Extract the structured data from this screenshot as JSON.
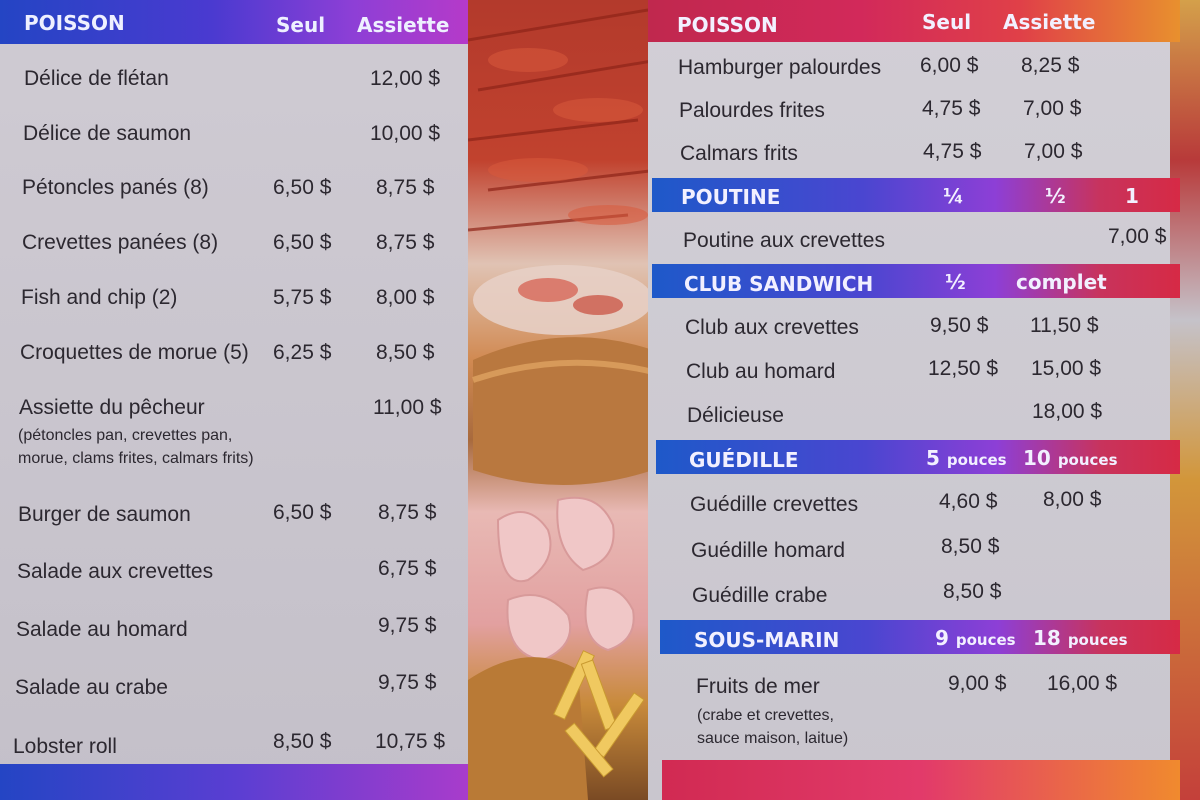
{
  "left": {
    "header": {
      "section": "POISSON",
      "col1": "Seul",
      "col2": "Assiette"
    },
    "items": [
      {
        "name": "Délice de flétan",
        "seul": "",
        "assiette": "12,00 $"
      },
      {
        "name": "Délice de saumon",
        "seul": "",
        "assiette": "10,00 $"
      },
      {
        "name": "Pétoncles panés (8)",
        "seul": "6,50 $",
        "assiette": "8,75 $"
      },
      {
        "name": "Crevettes panées (8)",
        "seul": "6,50 $",
        "assiette": "8,75 $"
      },
      {
        "name": "Fish and chip (2)",
        "seul": "5,75 $",
        "assiette": "8,00 $"
      },
      {
        "name": "Croquettes de morue (5)",
        "seul": "6,25 $",
        "assiette": "8,50 $"
      },
      {
        "name": "Assiette du pêcheur",
        "seul": "",
        "assiette": "11,00 $",
        "note1": "(pétoncles pan, crevettes pan,",
        "note2": "morue, clams frites, calmars frits)"
      },
      {
        "name": "Burger de saumon",
        "seul": "6,50 $",
        "assiette": "8,75 $"
      },
      {
        "name": "Salade aux crevettes",
        "seul": "",
        "assiette": "6,75 $"
      },
      {
        "name": "Salade au homard",
        "seul": "",
        "assiette": "9,75 $"
      },
      {
        "name": "Salade au crabe",
        "seul": "",
        "assiette": "9,75 $"
      },
      {
        "name": "Lobster roll",
        "seul": "8,50 $",
        "assiette": "10,75 $"
      }
    ]
  },
  "right": {
    "poisson": {
      "header": {
        "section": "POISSON",
        "col1": "Seul",
        "col2": "Assiette"
      },
      "items": [
        {
          "name": "Hamburger palourdes",
          "seul": "6,00 $",
          "assiette": "8,25 $"
        },
        {
          "name": "Palourdes frites",
          "seul": "4,75 $",
          "assiette": "7,00 $"
        },
        {
          "name": "Calmars frits",
          "seul": "4,75 $",
          "assiette": "7,00 $"
        }
      ]
    },
    "poutine": {
      "header": {
        "section": "POUTINE",
        "col1": "¼",
        "col2": "½",
        "col3": "1"
      },
      "items": [
        {
          "name": "Poutine aux crevettes",
          "price": "7,00 $"
        }
      ]
    },
    "club": {
      "header": {
        "section": "CLUB SANDWICH",
        "col1": "½",
        "col2": "complet"
      },
      "items": [
        {
          "name": "Club aux crevettes",
          "p1": "9,50 $",
          "p2": "11,50 $"
        },
        {
          "name": "Club au homard",
          "p1": "12,50 $",
          "p2": "15,00 $"
        },
        {
          "name": "Délicieuse",
          "p1": "",
          "p2": "18,00 $"
        }
      ]
    },
    "guedille": {
      "header": {
        "section": "GUÉDILLE",
        "col1_num": "5",
        "col1_unit": "pouces",
        "col2_num": "10",
        "col2_unit": "pouces"
      },
      "items": [
        {
          "name": "Guédille crevettes",
          "p1": "4,60 $",
          "p2": "8,00 $"
        },
        {
          "name": "Guédille homard",
          "p1": "8,50 $",
          "p2": ""
        },
        {
          "name": "Guédille crabe",
          "p1": "8,50 $",
          "p2": ""
        }
      ]
    },
    "sousmarin": {
      "header": {
        "section": "SOUS-MARIN",
        "col1_num": "9",
        "col1_unit": "pouces",
        "col2_num": "18",
        "col2_unit": "pouces"
      },
      "items": [
        {
          "name": "Fruits de mer",
          "p1": "9,00 $",
          "p2": "16,00 $",
          "note1": "(crabe et crevettes,",
          "note2": "sauce maison, laitue)"
        }
      ]
    }
  }
}
